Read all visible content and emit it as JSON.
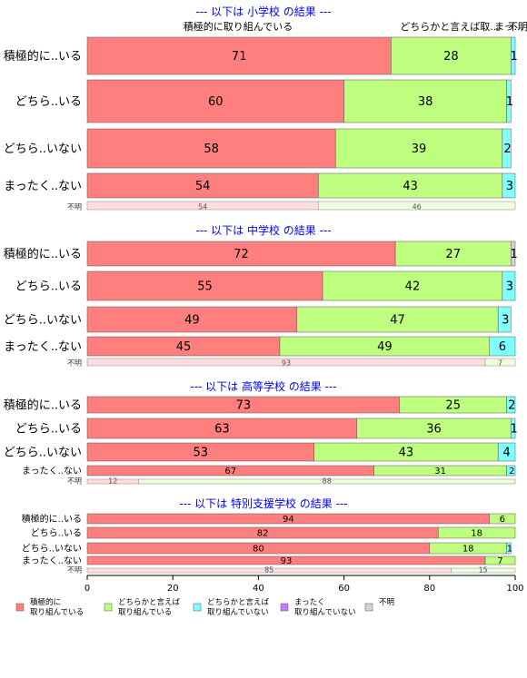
{
  "colors": {
    "cat1": "#FF7F7F",
    "cat2": "#BFFF7F",
    "cat3": "#7FFFFF",
    "cat4": "#BF7FFF",
    "cat5": "#D3D3D3",
    "title": "#0000FF"
  },
  "top_labels": [
    "積極的に取り組んでいる",
    "どちらかと言えば取...",
    "まっ...",
    "不明"
  ],
  "unknown_row_label": "不明",
  "chart_data": {
    "type": "bar",
    "orientation": "horizontal",
    "stacked": true,
    "xlim": [
      0,
      100
    ],
    "xticks": [
      0,
      20,
      40,
      60,
      80,
      100
    ],
    "legend": {
      "position": "bottom-left",
      "entries": [
        {
          "label": "積極的に\n取り組んでいる",
          "color": "#FF7F7F"
        },
        {
          "label": "どちらかと言えば\n取り組んでいる",
          "color": "#BFFF7F"
        },
        {
          "label": "どちらかと言えば\n取り組んでいない",
          "color": "#7FFFFF"
        },
        {
          "label": "まったく\n取り組んでいない",
          "color": "#BF7FFF"
        },
        {
          "label": "不明",
          "color": "#D3D3D3"
        }
      ]
    },
    "panels": [
      {
        "title": "--- 以下は 小学校 の結果 ---",
        "categories": [
          "積極的に..いる",
          "どちら..いる",
          "どちら..いない",
          "まったく..ない"
        ],
        "values": [
          [
            71,
            28,
            1,
            0,
            0
          ],
          [
            60,
            38,
            1,
            0,
            0
          ],
          [
            58,
            39,
            2,
            0,
            0
          ],
          [
            54,
            43,
            3,
            0,
            0
          ]
        ],
        "labels": [
          [
            "71",
            "28",
            "1"
          ],
          [
            "60",
            "38",
            "1"
          ],
          [
            "58",
            "39",
            "2"
          ],
          [
            "54",
            "43",
            "3"
          ]
        ],
        "unknown": [
          54,
          46
        ]
      },
      {
        "title": "--- 以下は 中学校 の結果 ---",
        "categories": [
          "積極的に..いる",
          "どちら..いる",
          "どちら..いない",
          "まったく..ない"
        ],
        "values": [
          [
            72,
            27,
            0,
            0,
            1
          ],
          [
            55,
            42,
            3,
            0,
            0
          ],
          [
            49,
            47,
            3,
            0,
            0
          ],
          [
            45,
            49,
            6,
            0,
            0
          ]
        ],
        "labels": [
          [
            "72",
            "27",
            "1"
          ],
          [
            "55",
            "42",
            "3"
          ],
          [
            "49",
            "47",
            "3"
          ],
          [
            "45",
            "49",
            "6"
          ]
        ],
        "unknown": [
          93,
          7
        ]
      },
      {
        "title": "--- 以下は 高等学校 の結果 ---",
        "categories": [
          "積極的に..いる",
          "どちら..いる",
          "どちら..いない",
          "まったく..ない"
        ],
        "values": [
          [
            73,
            25,
            2,
            0,
            0
          ],
          [
            63,
            36,
            1,
            0,
            0
          ],
          [
            53,
            43,
            4,
            0,
            0
          ],
          [
            67,
            31,
            2,
            0,
            0
          ]
        ],
        "labels": [
          [
            "73",
            "25",
            "2"
          ],
          [
            "63",
            "36",
            "1"
          ],
          [
            "53",
            "43",
            "4"
          ],
          [
            "67",
            "31",
            "2"
          ]
        ],
        "unknown": [
          12,
          88
        ]
      },
      {
        "title": "--- 以下は 特別支援学校 の結果 ---",
        "categories": [
          "積極的に..いる",
          "どちら..いる",
          "どちら..いない",
          "まったく..ない"
        ],
        "values": [
          [
            94,
            6,
            0,
            0,
            0
          ],
          [
            82,
            18,
            0,
            0,
            0
          ],
          [
            80,
            18,
            1,
            0,
            0
          ],
          [
            93,
            7,
            0,
            0,
            0
          ]
        ],
        "labels": [
          [
            "94",
            "6"
          ],
          [
            "82",
            "18"
          ],
          [
            "80",
            "18",
            "1"
          ],
          [
            "93",
            "7"
          ]
        ],
        "unknown": [
          85,
          15
        ]
      }
    ]
  }
}
